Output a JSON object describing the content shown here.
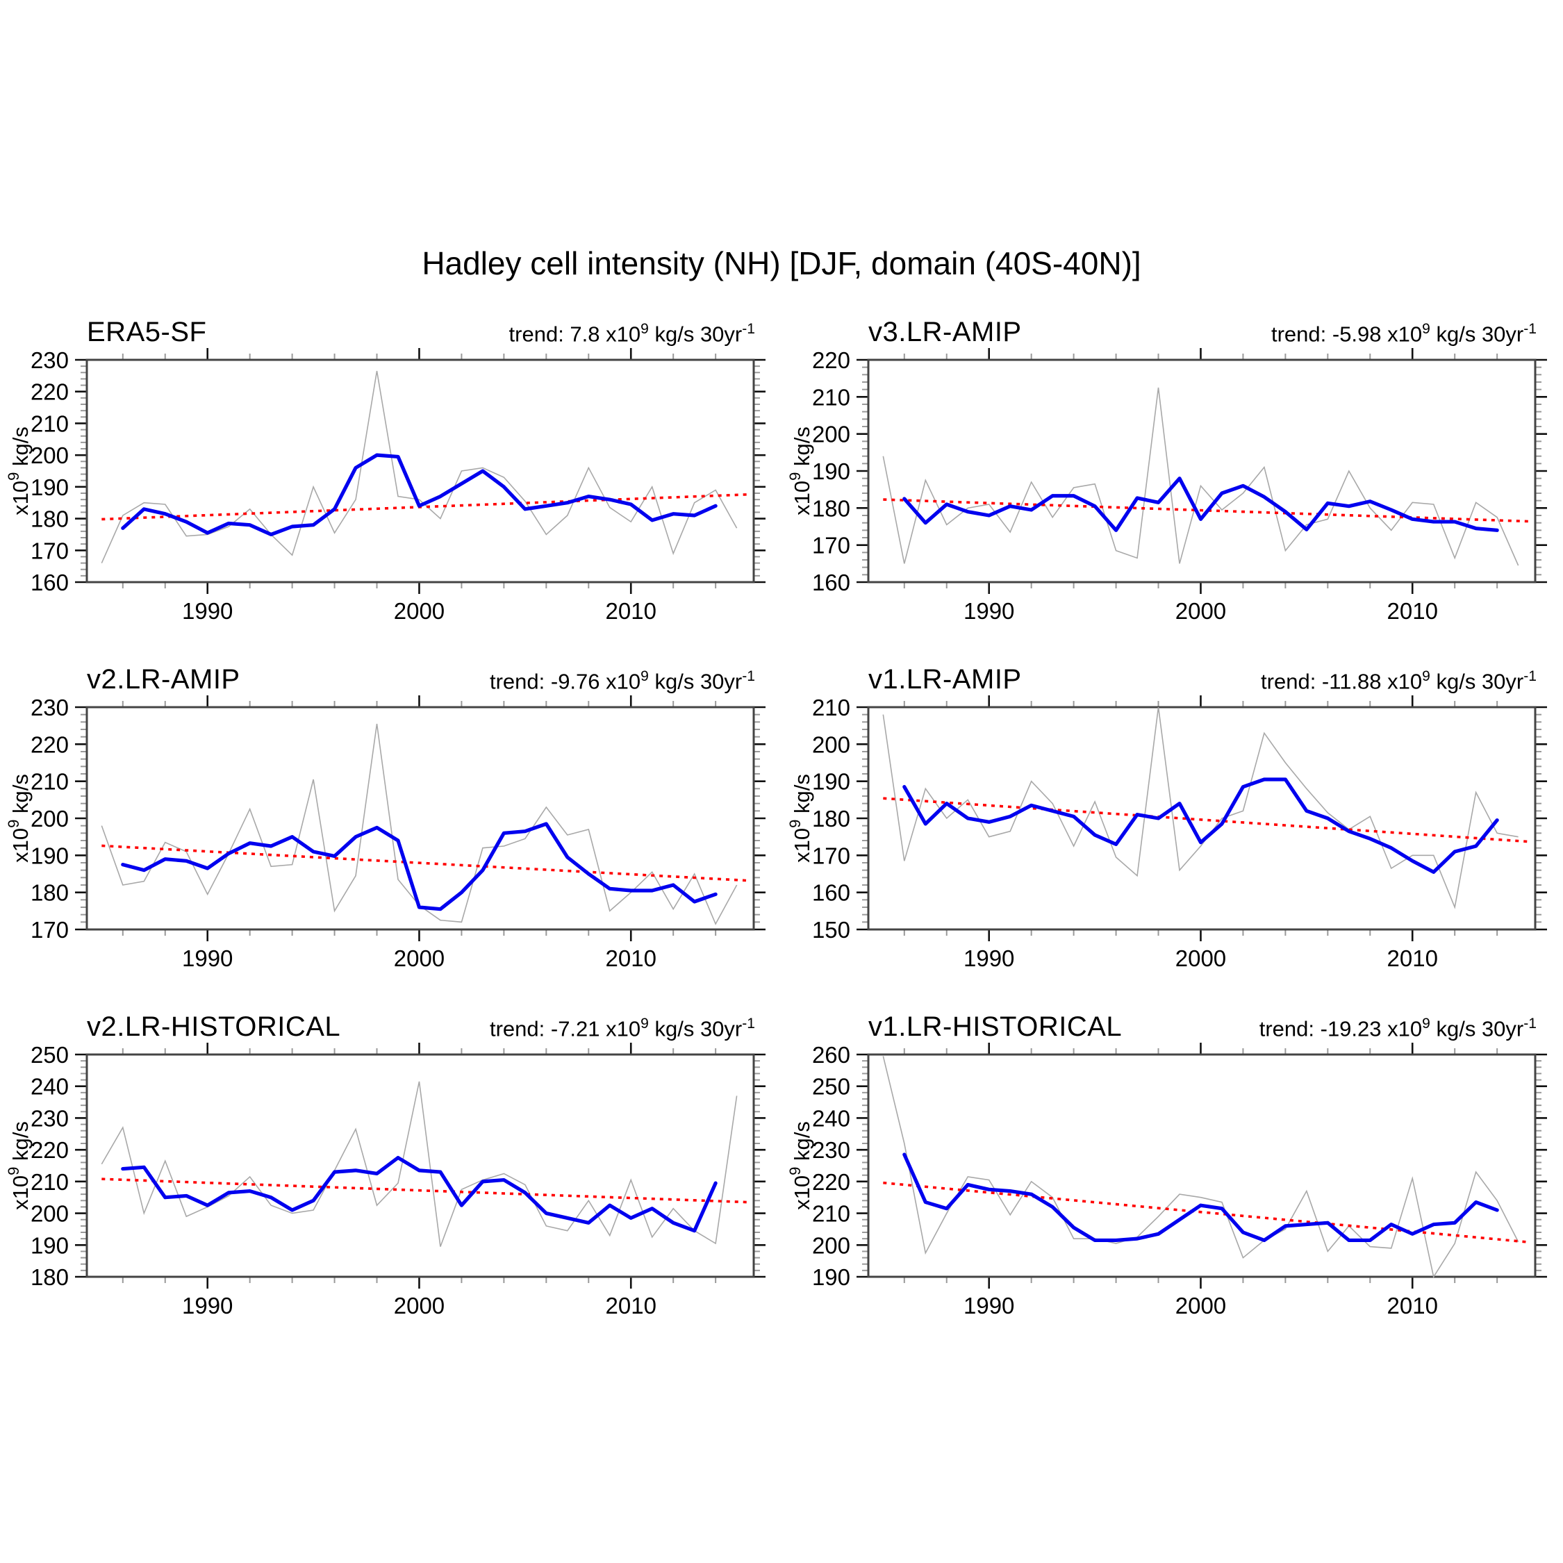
{
  "title": "Hadley cell intensity (NH) [DJF, domain (40S-40N)]",
  "y_axis_label": {
    "base": "x10",
    "exp": "9",
    "unit": " kg/s"
  },
  "colors": {
    "raw": "#a8a8a8",
    "smoothed": "#0000ee",
    "trend": "#ff0000",
    "frame": "#444444",
    "tick_major": "#111111",
    "tick_minor": "#999999"
  },
  "axes": {
    "xlim": [
      1984.3,
      2015.8
    ],
    "x_major": [
      1990,
      2000,
      2010
    ],
    "x_minor_step": 2,
    "x_minor_start": 1986,
    "x_minor_end": 2014,
    "y_major_step": 10,
    "y_minor_step": 2,
    "legend": "none",
    "grid": false
  },
  "chart_data": [
    {
      "type": "line",
      "title": "ERA5-SF",
      "trend": {
        "prefix": "trend:",
        "value": "7.8",
        "scale_base": "x10",
        "scale_exp": "9",
        "unit": "kg/s 30yr",
        "unit_exp": "-1"
      },
      "ylim": [
        160,
        230
      ],
      "series": [
        {
          "name": "annual",
          "color_key": "raw",
          "start_year": 1985,
          "values": [
            166,
            181,
            185,
            184.5,
            174.5,
            175,
            177.5,
            183,
            175,
            168.5,
            190,
            175.5,
            186,
            226.5,
            187,
            186,
            180,
            195,
            196,
            193,
            185.5,
            175,
            181,
            196,
            183.5,
            179,
            190,
            169,
            185,
            189,
            177
          ]
        },
        {
          "name": "smoothed",
          "color_key": "smoothed",
          "start_year": 1986,
          "values": [
            177,
            183,
            181.5,
            179,
            175.5,
            178.5,
            178,
            175,
            177.5,
            178,
            183,
            196,
            200,
            199.5,
            184,
            187,
            191,
            195,
            190,
            183,
            184,
            185,
            187,
            186,
            184.5,
            179.5,
            181.5,
            181,
            184
          ]
        }
      ],
      "trend_line": {
        "x": [
          1985,
          2015.5
        ],
        "y": [
          179.8,
          187.6
        ]
      }
    },
    {
      "type": "line",
      "title": "v3.LR-AMIP",
      "trend": {
        "prefix": "trend:",
        "value": "-5.98",
        "scale_base": "x10",
        "scale_exp": "9",
        "unit": "kg/s 30yr",
        "unit_exp": "-1"
      },
      "ylim": [
        160,
        220
      ],
      "series": [
        {
          "name": "annual",
          "color_key": "raw",
          "start_year": 1985,
          "values": [
            194,
            165,
            187.5,
            175.5,
            180,
            181,
            173.5,
            187,
            177.5,
            185.5,
            186.5,
            168.5,
            166.5,
            212.5,
            165,
            186,
            179.5,
            184,
            191,
            168.5,
            175.5,
            177,
            190,
            180,
            174,
            181.5,
            181,
            166.5,
            181.5,
            177.5,
            164.5
          ]
        },
        {
          "name": "smoothed",
          "color_key": "smoothed",
          "start_year": 1986,
          "values": [
            182.5,
            176,
            181,
            179,
            178,
            180.5,
            179.5,
            183.3,
            183.3,
            180.5,
            174,
            182.7,
            181.5,
            188,
            177,
            184,
            186,
            183,
            179,
            174.2,
            181.3,
            180.5,
            181.8,
            179.5,
            177,
            176.3,
            176.3,
            174.5,
            174
          ]
        }
      ],
      "trend_line": {
        "x": [
          1985,
          2015.5
        ],
        "y": [
          182.3,
          176.4
        ]
      }
    },
    {
      "type": "line",
      "title": "v2.LR-AMIP",
      "trend": {
        "prefix": "trend:",
        "value": "-9.76",
        "scale_base": "x10",
        "scale_exp": "9",
        "unit": "kg/s 30yr",
        "unit_exp": "-1"
      },
      "ylim": [
        170,
        230
      ],
      "series": [
        {
          "name": "annual",
          "color_key": "raw",
          "start_year": 1985,
          "values": [
            198,
            182,
            183,
            193.5,
            191,
            179.5,
            190.5,
            202.5,
            187,
            187.5,
            210.5,
            175,
            184.5,
            225.5,
            183.5,
            176.5,
            172.5,
            172,
            192,
            192.5,
            194.5,
            203,
            195.5,
            197,
            175,
            180,
            185.5,
            175.5,
            185,
            171.5,
            182
          ]
        },
        {
          "name": "smoothed",
          "color_key": "smoothed",
          "start_year": 1986,
          "values": [
            187.5,
            186,
            189,
            188.5,
            186.5,
            190.5,
            193.3,
            192.5,
            195,
            191,
            189.8,
            195,
            197.5,
            194,
            176,
            175.5,
            180,
            186,
            196,
            196.5,
            198.5,
            189.5,
            185,
            181,
            180.5,
            180.5,
            182,
            177.5,
            179.5
          ]
        }
      ],
      "trend_line": {
        "x": [
          1985,
          2015.5
        ],
        "y": [
          192.6,
          183.2
        ]
      }
    },
    {
      "type": "line",
      "title": "v1.LR-AMIP",
      "trend": {
        "prefix": "trend:",
        "value": "-11.88",
        "scale_base": "x10",
        "scale_exp": "9",
        "unit": "kg/s 30yr",
        "unit_exp": "-1"
      },
      "ylim": [
        150,
        210
      ],
      "series": [
        {
          "name": "annual",
          "color_key": "raw",
          "start_year": 1985,
          "values": [
            208,
            168.5,
            188,
            180,
            185,
            175,
            176.5,
            190,
            184,
            172.5,
            184.5,
            169.5,
            164.5,
            210,
            166,
            172.5,
            180,
            182,
            203,
            195,
            188,
            181.5,
            177,
            180.5,
            166.5,
            170,
            170,
            156,
            187,
            176,
            175
          ]
        },
        {
          "name": "smoothed",
          "color_key": "smoothed",
          "start_year": 1986,
          "values": [
            188.5,
            178.5,
            184,
            180,
            179,
            180.5,
            183.5,
            182,
            180.5,
            175.5,
            173,
            181,
            180,
            184,
            173.5,
            178.5,
            188.5,
            190.5,
            190.5,
            182,
            180,
            176.5,
            174.5,
            172,
            168.5,
            165.5,
            171,
            172.5,
            179.5
          ]
        }
      ],
      "trend_line": {
        "x": [
          1985,
          2015.5
        ],
        "y": [
          185.4,
          173.7
        ]
      }
    },
    {
      "type": "line",
      "title": "v2.LR-HISTORICAL",
      "trend": {
        "prefix": "trend:",
        "value": "-7.21",
        "scale_base": "x10",
        "scale_exp": "9",
        "unit": "kg/s 30yr",
        "unit_exp": "-1"
      },
      "ylim": [
        180,
        250
      ],
      "series": [
        {
          "name": "annual",
          "color_key": "raw",
          "start_year": 1985,
          "values": [
            215.5,
            227,
            200,
            216.5,
            199,
            202,
            205.5,
            211.5,
            202.5,
            200,
            201,
            213.5,
            226.5,
            202.5,
            209.5,
            241.5,
            189.5,
            207.5,
            210.5,
            212.5,
            209,
            196,
            194.5,
            204,
            193,
            210.5,
            192.5,
            201.5,
            194.5,
            190.5,
            237
          ]
        },
        {
          "name": "smoothed",
          "color_key": "smoothed",
          "start_year": 1986,
          "values": [
            214,
            214.5,
            205,
            205.5,
            202.5,
            206.5,
            207,
            205,
            201,
            204,
            213,
            213.5,
            212.5,
            217.5,
            213.5,
            213,
            202.5,
            210,
            210.5,
            206.5,
            200,
            198.5,
            197,
            202.5,
            198.5,
            201.5,
            197,
            194.5,
            209.5
          ]
        }
      ],
      "trend_line": {
        "x": [
          1985,
          2015.5
        ],
        "y": [
          210.8,
          203.5
        ]
      }
    },
    {
      "type": "line",
      "title": "v1.LR-HISTORICAL",
      "trend": {
        "prefix": "trend:",
        "value": "-19.23",
        "scale_base": "x10",
        "scale_exp": "9",
        "unit": "kg/s 30yr",
        "unit_exp": "-1"
      },
      "ylim": [
        190,
        260
      ],
      "series": [
        {
          "name": "annual",
          "color_key": "raw",
          "start_year": 1985,
          "values": [
            259.5,
            232,
            197.5,
            210,
            221.5,
            220.5,
            209.5,
            220,
            215,
            202,
            202,
            200.5,
            202.5,
            209,
            216,
            215,
            213.5,
            196,
            201.5,
            205,
            217,
            198,
            206,
            199.5,
            199,
            221,
            190,
            200.5,
            223,
            214,
            201
          ]
        },
        {
          "name": "smoothed",
          "color_key": "smoothed",
          "start_year": 1986,
          "values": [
            228.5,
            213.5,
            211.5,
            219,
            217.5,
            217,
            216,
            212,
            205.5,
            201.5,
            201.5,
            202,
            203.5,
            208,
            212.5,
            211.5,
            204,
            201.5,
            206,
            206.5,
            207,
            201.5,
            201.5,
            206.5,
            203.5,
            206.5,
            207,
            213.5,
            211
          ]
        }
      ],
      "trend_line": {
        "x": [
          1985,
          2015.5
        ],
        "y": [
          219.6,
          200.9
        ]
      }
    }
  ]
}
